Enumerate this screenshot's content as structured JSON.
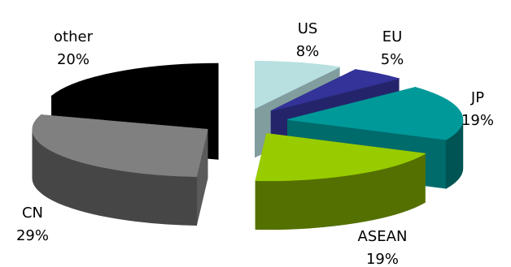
{
  "chart_data": {
    "type": "pie3d",
    "categories": [
      "US",
      "EU",
      "JP",
      "ASEAN",
      "CN",
      "other"
    ],
    "values": [
      8,
      5,
      19,
      19,
      29,
      20
    ],
    "value_labels": [
      "8%",
      "5%",
      "19%",
      "19%",
      "29%",
      "20%"
    ],
    "colors": [
      "#b8e0e0",
      "#333399",
      "#009999",
      "#99cc00",
      "#808080",
      "#000000"
    ]
  }
}
